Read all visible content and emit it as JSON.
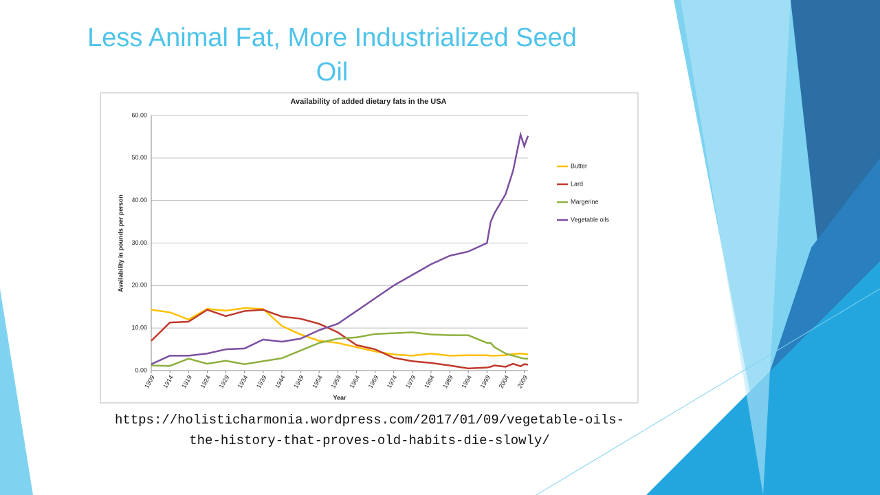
{
  "slide": {
    "title": "Less Animal Fat, More Industrialized Seed Oil",
    "source": "https://holisticharmonia.wordpress.com/2017/01/09/vegetable-oils-the-history-that-proves-old-habits-die-slowly/"
  },
  "chart_data": {
    "type": "line",
    "title": "Availability of added dietary fats in the USA",
    "x_label": "Year",
    "y_label": "Availability in pounds per person",
    "x": [
      1909,
      1914,
      1919,
      1924,
      1929,
      1934,
      1939,
      1944,
      1949,
      1954,
      1959,
      1964,
      1969,
      1974,
      1979,
      1984,
      1989,
      1994,
      1999,
      2000,
      2001,
      2004,
      2006,
      2008,
      2009,
      2010
    ],
    "xlim": [
      1909,
      2010
    ],
    "xticks": [
      1909,
      1914,
      1919,
      1924,
      1929,
      1934,
      1939,
      1944,
      1949,
      1954,
      1959,
      1964,
      1969,
      1974,
      1979,
      1984,
      1989,
      1994,
      1999,
      2004,
      2009
    ],
    "ylim": [
      0,
      60
    ],
    "yticks": [
      {
        "value": 0,
        "label": "0.00"
      },
      {
        "value": 10,
        "label": "10.00"
      },
      {
        "value": 20,
        "label": "20.00"
      },
      {
        "value": 30,
        "label": "30.00"
      },
      {
        "value": 40,
        "label": "40.00"
      },
      {
        "value": 50,
        "label": "50.00"
      },
      {
        "value": 60,
        "label": "60.00"
      }
    ],
    "grid": true,
    "legend": "right",
    "series": [
      {
        "name": "Butter",
        "color": "#ffc000",
        "values": [
          14.3,
          13.7,
          12,
          14.5,
          14.1,
          14.7,
          14.5,
          10.5,
          8.5,
          7,
          6.5,
          5.5,
          4.5,
          3.8,
          3.5,
          4,
          3.5,
          3.6,
          3.6,
          3.5,
          3.5,
          3.6,
          3.9,
          4,
          3.9,
          3.8
        ]
      },
      {
        "name": "Lard",
        "color": "#c0392b",
        "values": [
          7,
          11.3,
          11.5,
          14.3,
          12.8,
          14,
          14.3,
          12.7,
          12.2,
          11,
          9,
          6,
          5,
          3,
          2.2,
          1.8,
          1.2,
          0.5,
          0.7,
          0.9,
          1.2,
          0.9,
          1.6,
          1,
          1.5,
          1.4
        ]
      },
      {
        "name": "Margerine",
        "color": "#8db03e",
        "values": [
          1.2,
          1.1,
          2.8,
          1.6,
          2.3,
          1.5,
          2.2,
          2.9,
          4.7,
          6.5,
          7.5,
          7.8,
          8.6,
          8.8,
          9,
          8.5,
          8.3,
          8.3,
          6.5,
          6.5,
          5.5,
          4,
          3.5,
          3,
          2.8,
          2.8
        ]
      },
      {
        "name": "Vegetable oils",
        "color": "#7b4fa0",
        "values": [
          1.5,
          3.5,
          3.5,
          4,
          5,
          5.2,
          7.3,
          6.8,
          7.5,
          9.5,
          11,
          14,
          17,
          20,
          22.5,
          25,
          27,
          28,
          30,
          35,
          37,
          41.5,
          47,
          55.5,
          52.8,
          55.2
        ]
      }
    ]
  }
}
